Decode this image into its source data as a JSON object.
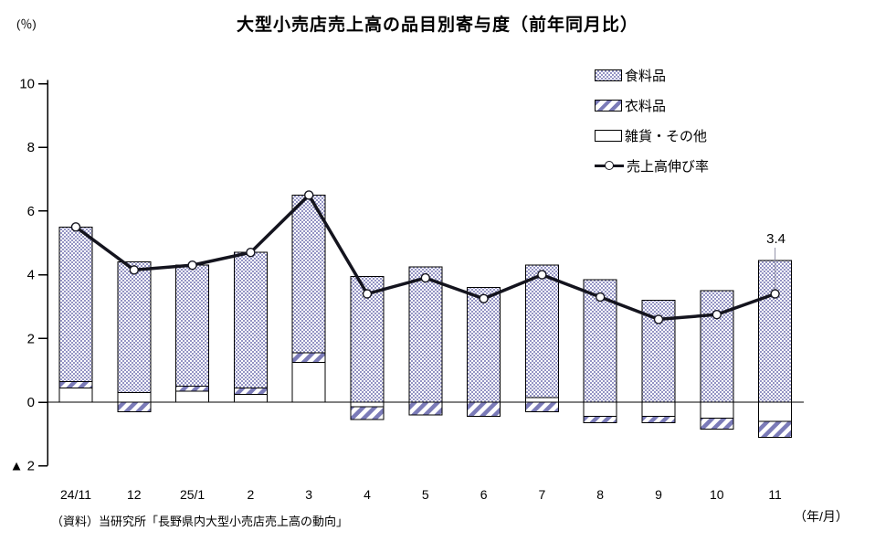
{
  "title": "大型小売店売上高の品目別寄与度（前年同月比）",
  "y_unit_label": "(％)",
  "x_unit_label": "（年/月）",
  "source_note": "（資料）当研究所「長野県内大型小売店売上高の動向」",
  "colors": {
    "bar_checker_pattern": "#9494c4",
    "hatch_stripe": "#7b7bb8",
    "line": "#14141e",
    "axis": "#000000",
    "leader_line": "#9090a8"
  },
  "chart_data": {
    "type": "bar",
    "subtype": "stacked-bars-with-line-overlay",
    "title": "大型小売店売上高の品目別寄与度（前年同月比）",
    "xlabel": "（年/月）",
    "ylabel": "(％)",
    "ylim": [
      -2,
      10
    ],
    "yticks": [
      10,
      8,
      6,
      4,
      2,
      0,
      -2
    ],
    "ytick_labels": [
      "10",
      "8",
      "6",
      "4",
      "2",
      "0",
      "▲ 2"
    ],
    "grid": false,
    "legend_position": "upper-right",
    "categories": [
      "24/11",
      "12",
      "25/1",
      "2",
      "3",
      "4",
      "5",
      "6",
      "7",
      "8",
      "9",
      "10",
      "11"
    ],
    "series": [
      {
        "name": "食料品",
        "role": "bar",
        "pattern": "checker",
        "values": [
          4.85,
          4.1,
          3.8,
          4.25,
          4.95,
          3.95,
          4.25,
          3.6,
          4.15,
          3.85,
          3.2,
          3.5,
          4.45
        ]
      },
      {
        "name": "衣料品",
        "role": "bar",
        "pattern": "hatch",
        "values": [
          0.2,
          -0.3,
          0.15,
          0.2,
          0.3,
          -0.4,
          -0.4,
          -0.45,
          -0.3,
          -0.2,
          -0.2,
          -0.35,
          -0.5
        ]
      },
      {
        "name": "雑貨・その他",
        "role": "bar",
        "pattern": "white",
        "values": [
          0.45,
          0.3,
          0.35,
          0.25,
          1.25,
          -0.15,
          0,
          0,
          0.15,
          -0.45,
          -0.45,
          -0.5,
          -0.6
        ]
      },
      {
        "name": "売上高伸び率",
        "role": "line",
        "pattern": "line-marker",
        "values": [
          5.5,
          4.15,
          4.3,
          4.7,
          6.5,
          3.4,
          3.9,
          3.25,
          4.0,
          3.3,
          2.6,
          2.75,
          3.4
        ]
      }
    ],
    "last_point_label": "3.4",
    "negative_number_style": "▲ prefix"
  }
}
